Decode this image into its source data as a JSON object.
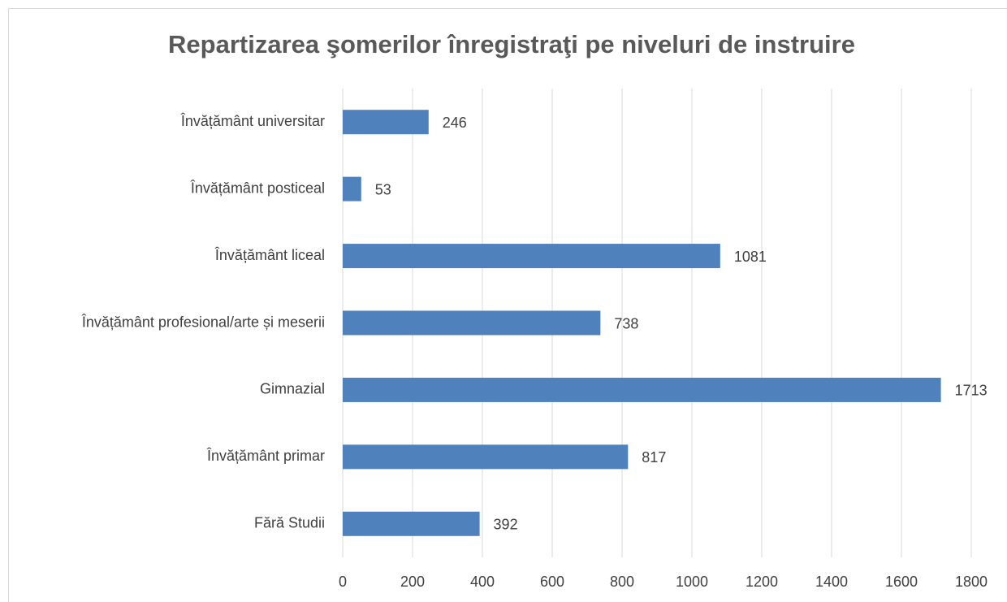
{
  "chart_data": {
    "type": "bar",
    "orientation": "horizontal",
    "title": "Repartizarea şomerilor înregistraţi pe niveluri de instruire",
    "categories": [
      "Învățământ universitar",
      "Învățământ posticeal",
      "Învățământ liceal",
      "Învățământ profesional/arte și meserii",
      "Gimnazial",
      "Învățământ primar",
      "Fără Studii"
    ],
    "values": [
      246,
      53,
      1081,
      738,
      1713,
      817,
      392
    ],
    "color": "#4f81bd",
    "xlim": [
      0,
      1800
    ],
    "xticks": [
      0,
      200,
      400,
      600,
      800,
      1000,
      1200,
      1400,
      1600,
      1800
    ],
    "grid": true
  }
}
